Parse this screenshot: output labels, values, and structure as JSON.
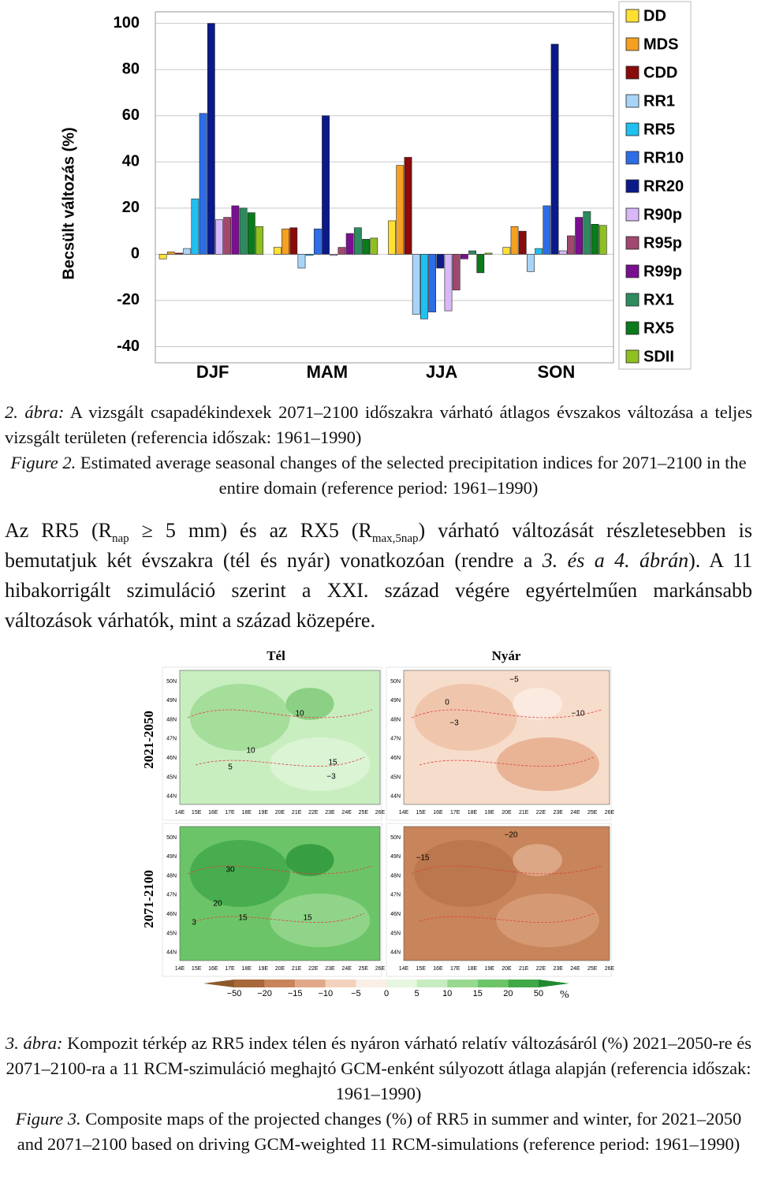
{
  "chart_data": {
    "type": "bar",
    "y_label": "Becsült változás (%)",
    "categories": [
      "DJF",
      "MAM",
      "JJA",
      "SON"
    ],
    "series": [
      {
        "name": "DD",
        "color": "#ffe033",
        "values": [
          -2,
          3,
          14.5,
          3
        ]
      },
      {
        "name": "MDS",
        "color": "#f5a020",
        "values": [
          1,
          11,
          38.5,
          12
        ]
      },
      {
        "name": "CDD",
        "color": "#8b0a0a",
        "values": [
          0.5,
          11.5,
          42,
          10
        ]
      },
      {
        "name": "RR1",
        "color": "#a8d4f8",
        "values": [
          2.5,
          -6,
          -26,
          -7.5
        ]
      },
      {
        "name": "RR5",
        "color": "#20c0f0",
        "values": [
          24,
          -0.5,
          -28,
          2.5
        ]
      },
      {
        "name": "RR10",
        "color": "#2d6ee8",
        "values": [
          61,
          11,
          -25,
          21
        ]
      },
      {
        "name": "RR20",
        "color": "#0a1a8a",
        "values": [
          100,
          60,
          -6,
          91
        ]
      },
      {
        "name": "R90p",
        "color": "#d8b8f8",
        "values": [
          15,
          -0.5,
          -24.5,
          1.5
        ]
      },
      {
        "name": "R95p",
        "color": "#a04870",
        "values": [
          16,
          3,
          -15.5,
          8
        ]
      },
      {
        "name": "R99p",
        "color": "#7a1090",
        "values": [
          21,
          9,
          -2,
          16
        ]
      },
      {
        "name": "RX1",
        "color": "#2e8b60",
        "values": [
          20,
          11.5,
          1.5,
          18.5
        ]
      },
      {
        "name": "RX5",
        "color": "#0a7a1a",
        "values": [
          18,
          6.5,
          -8,
          13
        ]
      },
      {
        "name": "SDII",
        "color": "#90c020",
        "values": [
          12,
          7,
          0.5,
          12.5
        ]
      }
    ],
    "ylim": [
      -47,
      105
    ],
    "yticks": [
      -40,
      -20,
      0,
      20,
      40,
      60,
      80,
      100
    ],
    "grid": true,
    "legend": "right"
  },
  "figure2_caption": {
    "hu_label": "2. ábra:",
    "hu_text": "A vizsgált csapadékindexek 2071–2100 időszakra várható átlagos évszakos változása a teljes vizsgált területen (referencia időszak: 1961–1990)",
    "en_label": "Figure 2.",
    "en_text": "Estimated average seasonal changes of the selected precipitation indices for 2071–2100 in the entire domain (reference period: 1961–1990)"
  },
  "paragraph": {
    "p1": "Az RR5 (R",
    "s1": "nap",
    "p2": " ≥ 5 mm) és az RX5 (R",
    "s2": "max,5nap",
    "p3": ") várható változását részletesebben is bemutatjuk két évszakra (tél és nyár) vonatkozóan (rendre a ",
    "ref": "3. és a 4. ábrán",
    "p4": "). A 11 hibakorrigált szimuláció szerint a XXI. század végére egyértelműen markánsabb változások várhatók, mint a század közepére."
  },
  "figure3": {
    "columns": [
      "Tél",
      "Nyár"
    ],
    "rows": [
      "2021-2050",
      "2071-2100"
    ],
    "lat_labels": [
      "50N",
      "49N",
      "48N",
      "47N",
      "46N",
      "45N",
      "44N"
    ],
    "lon_labels": [
      "14E",
      "15E",
      "16E",
      "17E",
      "18E",
      "19E",
      "20E",
      "21E",
      "22E",
      "23E",
      "24E",
      "25E",
      "26E"
    ],
    "maps": [
      {
        "contour_labels": [
          "10",
          "10",
          "5",
          "15",
          "−3"
        ]
      },
      {
        "contour_labels": [
          "−5",
          "0",
          "−3",
          "−10"
        ]
      },
      {
        "contour_labels": [
          "30",
          "20",
          "15",
          "15",
          "3"
        ]
      },
      {
        "contour_labels": [
          "−20",
          "−15"
        ]
      }
    ],
    "colorbar_labels": [
      "−50",
      "−20",
      "−15",
      "−10",
      "−5",
      "0",
      "5",
      "10",
      "15",
      "20",
      "50"
    ],
    "colorbar_unit": "%"
  },
  "figure3_caption": {
    "hu_label": "3. ábra:",
    "hu_text": "Kompozit térkép az RR5 index télen és nyáron várható relatív változásáról (%) 2021–2050-re és 2071–2100-ra a 11 RCM-szimuláció meghajtó GCM-enként súlyozott átlaga alapján (referencia időszak: 1961–1990)",
    "en_label": "Figure 3.",
    "en_text": "Composite maps of the projected changes (%) of RR5 in summer and winter, for 2021–2050 and 2071–2100 based on driving GCM-weighted 11 RCM-simulations (reference period: 1961–1990)"
  }
}
